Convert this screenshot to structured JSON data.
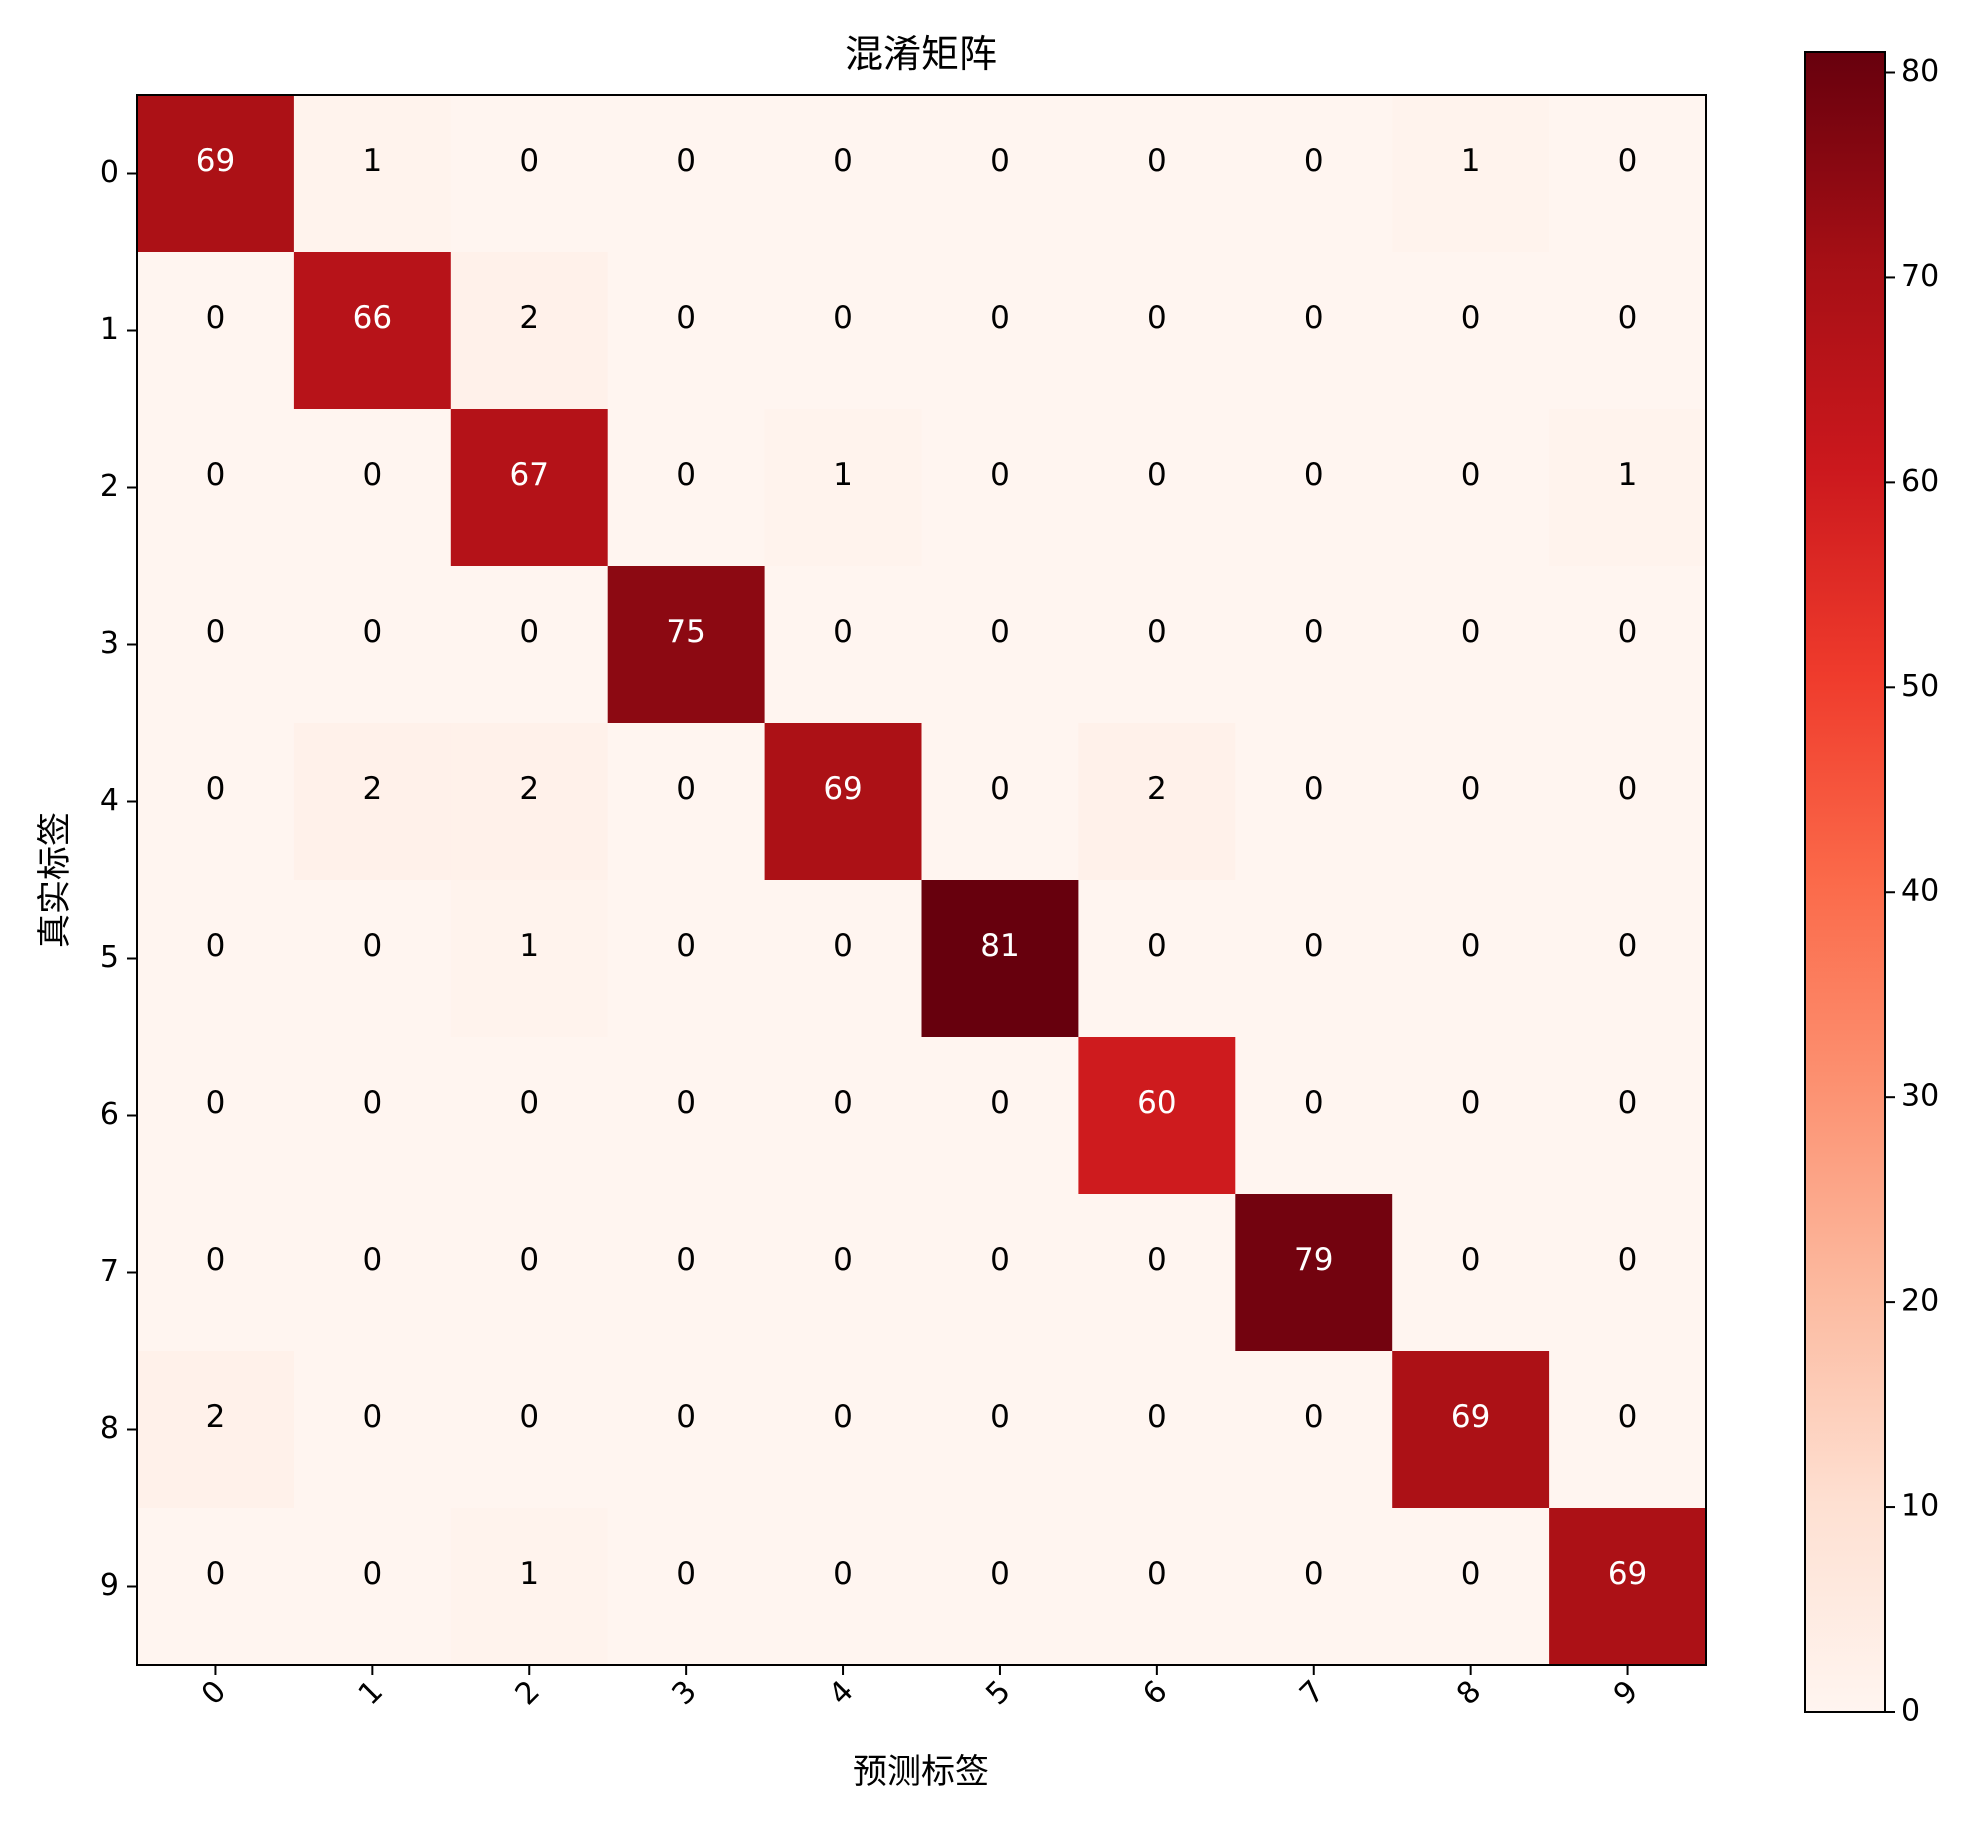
{
  "chart_data": {
    "type": "heatmap",
    "title": "混淆矩阵",
    "xlabel": "预测标签",
    "ylabel": "真实标签",
    "x_categories": [
      "0",
      "1",
      "2",
      "3",
      "4",
      "5",
      "6",
      "7",
      "8",
      "9"
    ],
    "y_categories": [
      "0",
      "1",
      "2",
      "3",
      "4",
      "5",
      "6",
      "7",
      "8",
      "9"
    ],
    "values": [
      [
        69,
        1,
        0,
        0,
        0,
        0,
        0,
        0,
        1,
        0
      ],
      [
        0,
        66,
        2,
        0,
        0,
        0,
        0,
        0,
        0,
        0
      ],
      [
        0,
        0,
        67,
        0,
        1,
        0,
        0,
        0,
        0,
        1
      ],
      [
        0,
        0,
        0,
        75,
        0,
        0,
        0,
        0,
        0,
        0
      ],
      [
        0,
        2,
        2,
        0,
        69,
        0,
        2,
        0,
        0,
        0
      ],
      [
        0,
        0,
        1,
        0,
        0,
        81,
        0,
        0,
        0,
        0
      ],
      [
        0,
        0,
        0,
        0,
        0,
        0,
        60,
        0,
        0,
        0
      ],
      [
        0,
        0,
        0,
        0,
        0,
        0,
        0,
        79,
        0,
        0
      ],
      [
        2,
        0,
        0,
        0,
        0,
        0,
        0,
        0,
        69,
        0
      ],
      [
        0,
        0,
        1,
        0,
        0,
        0,
        0,
        0,
        0,
        69
      ]
    ],
    "colormap": "Reds",
    "colorbar": {
      "range": [
        0,
        81
      ],
      "ticks": [
        0,
        10,
        20,
        30,
        40,
        50,
        60,
        70,
        80
      ]
    },
    "x_tick_rotation": "45 degrees",
    "grid": false,
    "legend": "colorbar at right"
  }
}
